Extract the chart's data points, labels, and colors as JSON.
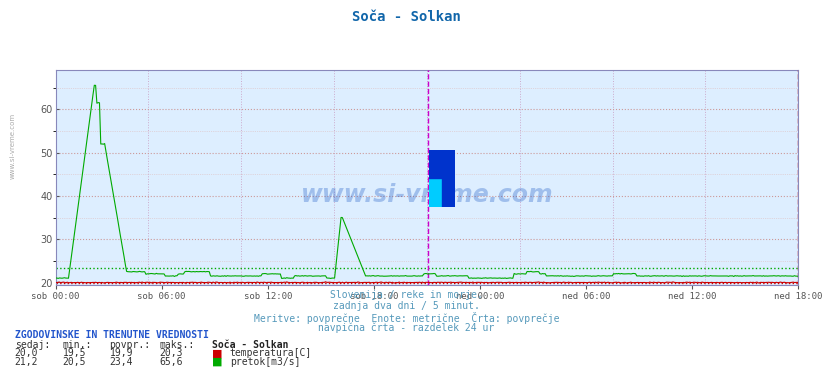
{
  "title": "Soča - Solkan",
  "title_color": "#1166aa",
  "bg_color": "#ffffff",
  "plot_bg_color": "#ddeeff",
  "grid_major_color": "#cc9999",
  "grid_minor_color": "#ddbbbb",
  "grid_vert_color": "#ccaacc",
  "ymin": 19.5,
  "ymax": 69.0,
  "yticks": [
    20,
    30,
    40,
    50,
    60
  ],
  "n_points": 576,
  "x_tick_labels": [
    "sob 00:00",
    "sob 06:00",
    "sob 12:00",
    "sob 18:00",
    "ned 00:00",
    "ned 06:00",
    "ned 12:00",
    "ned 18:00"
  ],
  "temp_color": "#cc0000",
  "flow_color": "#00aa00",
  "temp_avg": 19.9,
  "flow_avg": 23.4,
  "watermark_text": "www.si-vreme.com",
  "watermark_color": "#0044bb",
  "subtitle_lines": [
    "Slovenija / reke in morje.",
    "zadnja dva dni / 5 minut.",
    "Meritve: povprečne  Enote: metrične  Črta: povprečje",
    "navpična črta - razdelek 24 ur"
  ],
  "subtitle_color": "#5599bb",
  "table_header": "ZGODOVINSKE IN TRENUTNE VREDNOSTI",
  "table_col_headers": [
    "sedaj:",
    "min.:",
    "povpr.:",
    "maks.:"
  ],
  "station": "Soča - Solkan",
  "temp_row": [
    "20,0",
    "19,5",
    "19,9",
    "20,3"
  ],
  "flow_row": [
    "21,2",
    "20,5",
    "23,4",
    "65,6"
  ],
  "legend_temp": "temperatura[C]",
  "legend_flow": "pretok[m3/s]",
  "vline_mid_color": "#cc00cc",
  "vline_end_color": "#cc0000",
  "sidebar_color": "#aaaaaa",
  "spine_color": "#8888bb",
  "logo_yellow": "#ffee00",
  "logo_cyan": "#00ccff",
  "logo_blue": "#0033cc"
}
